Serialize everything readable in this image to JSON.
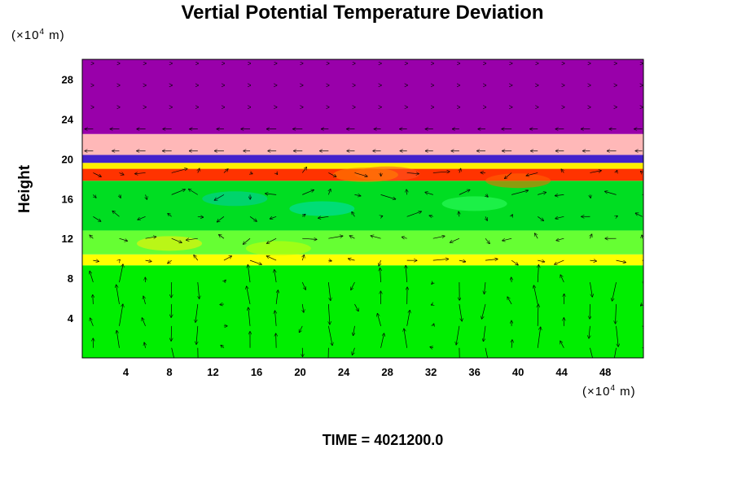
{
  "chart_data": {
    "type": "heatmap",
    "title": "Vertial Potential Temperature Deviation",
    "ylabel": "Height",
    "x_unit": "(×10",
    "x_unit_exp": "4",
    "x_unit_tail": " m)",
    "y_unit": "(×10",
    "y_unit_exp": "4",
    "y_unit_tail": " m)",
    "x_ticks": [
      4,
      8,
      12,
      16,
      20,
      24,
      28,
      32,
      36,
      40,
      44,
      48
    ],
    "y_ticks": [
      4,
      8,
      12,
      16,
      20,
      24,
      28
    ],
    "xlim": [
      0,
      51.5
    ],
    "ylim": [
      0,
      30
    ],
    "overlay": "wind vector arrows",
    "bands": [
      {
        "y0": 0,
        "y1": 9.3,
        "color": "#00ee00"
      },
      {
        "y0": 9.3,
        "y1": 10.4,
        "color": "#ffff00"
      },
      {
        "y0": 10.4,
        "y1": 12.8,
        "color": "#66ff33"
      },
      {
        "y0": 12.8,
        "y1": 17.8,
        "color": "#00dd22"
      },
      {
        "y0": 17.8,
        "y1": 19.0,
        "color": "#ff3300"
      },
      {
        "y0": 19.0,
        "y1": 19.6,
        "color": "#ffee00"
      },
      {
        "y0": 19.6,
        "y1": 20.4,
        "color": "#4422cc"
      },
      {
        "y0": 20.4,
        "y1": 22.5,
        "color": "#ffb8b8"
      },
      {
        "y0": 22.5,
        "y1": 30,
        "color": "#9900aa"
      }
    ],
    "colors": {
      "low": "#00ee00",
      "high": "#ff0000",
      "top": "#9900aa"
    }
  },
  "footer": {
    "time_label": "TIME = 4021200.0"
  }
}
